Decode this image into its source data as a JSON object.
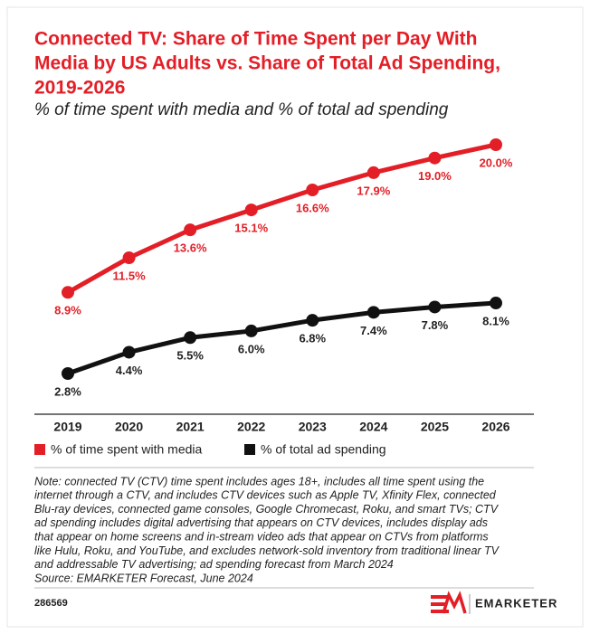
{
  "chart_data": {
    "type": "line",
    "title": [
      "Connected TV: Share of Time Spent per Day With",
      "Media by US Adults vs. Share of Total Ad Spending,",
      "2019-2026"
    ],
    "subtitle": "% of time spent with media and % of total ad spending",
    "categories": [
      "2019",
      "2020",
      "2021",
      "2022",
      "2023",
      "2024",
      "2025",
      "2026"
    ],
    "series": [
      {
        "name": "% of time spent with media",
        "color": "#e31e26",
        "values": [
          8.9,
          11.5,
          13.6,
          15.1,
          16.6,
          17.9,
          19.0,
          20.0
        ],
        "value_labels": [
          "8.9%",
          "11.5%",
          "13.6%",
          "15.1%",
          "16.6%",
          "17.9%",
          "19.0%",
          "20.0%"
        ]
      },
      {
        "name": "% of total ad spending",
        "color": "#111111",
        "values": [
          2.8,
          4.4,
          5.5,
          6.0,
          6.8,
          7.4,
          7.8,
          8.1
        ],
        "value_labels": [
          "2.8%",
          "4.4%",
          "5.5%",
          "6.0%",
          "6.8%",
          "7.4%",
          "7.8%",
          "8.1%"
        ]
      }
    ],
    "legend": "bottom-left",
    "note": [
      "Note: connected TV (CTV) time spent includes ages 18+, includes all time spent using the",
      "internet through a CTV, and includes CTV devices such as Apple TV, Xfinity Flex, connected",
      "Blu-ray devices, connected game consoles, Google Chromecast, Roku, and smart TVs; CTV",
      "ad spending includes digital advertising that appears on CTV devices, includes display ads",
      "that appear on home screens and in-stream video ads that appear on CTVs from platforms",
      "like Hulu, Roku, and YouTube, and excludes network-sold inventory from traditional linear TV",
      "and addressable TV advertising; ad spending forecast from March 2024"
    ],
    "source": "Source: EMARKETER Forecast, June 2024",
    "chart_id": "286569",
    "brand": "EMARKETER"
  }
}
